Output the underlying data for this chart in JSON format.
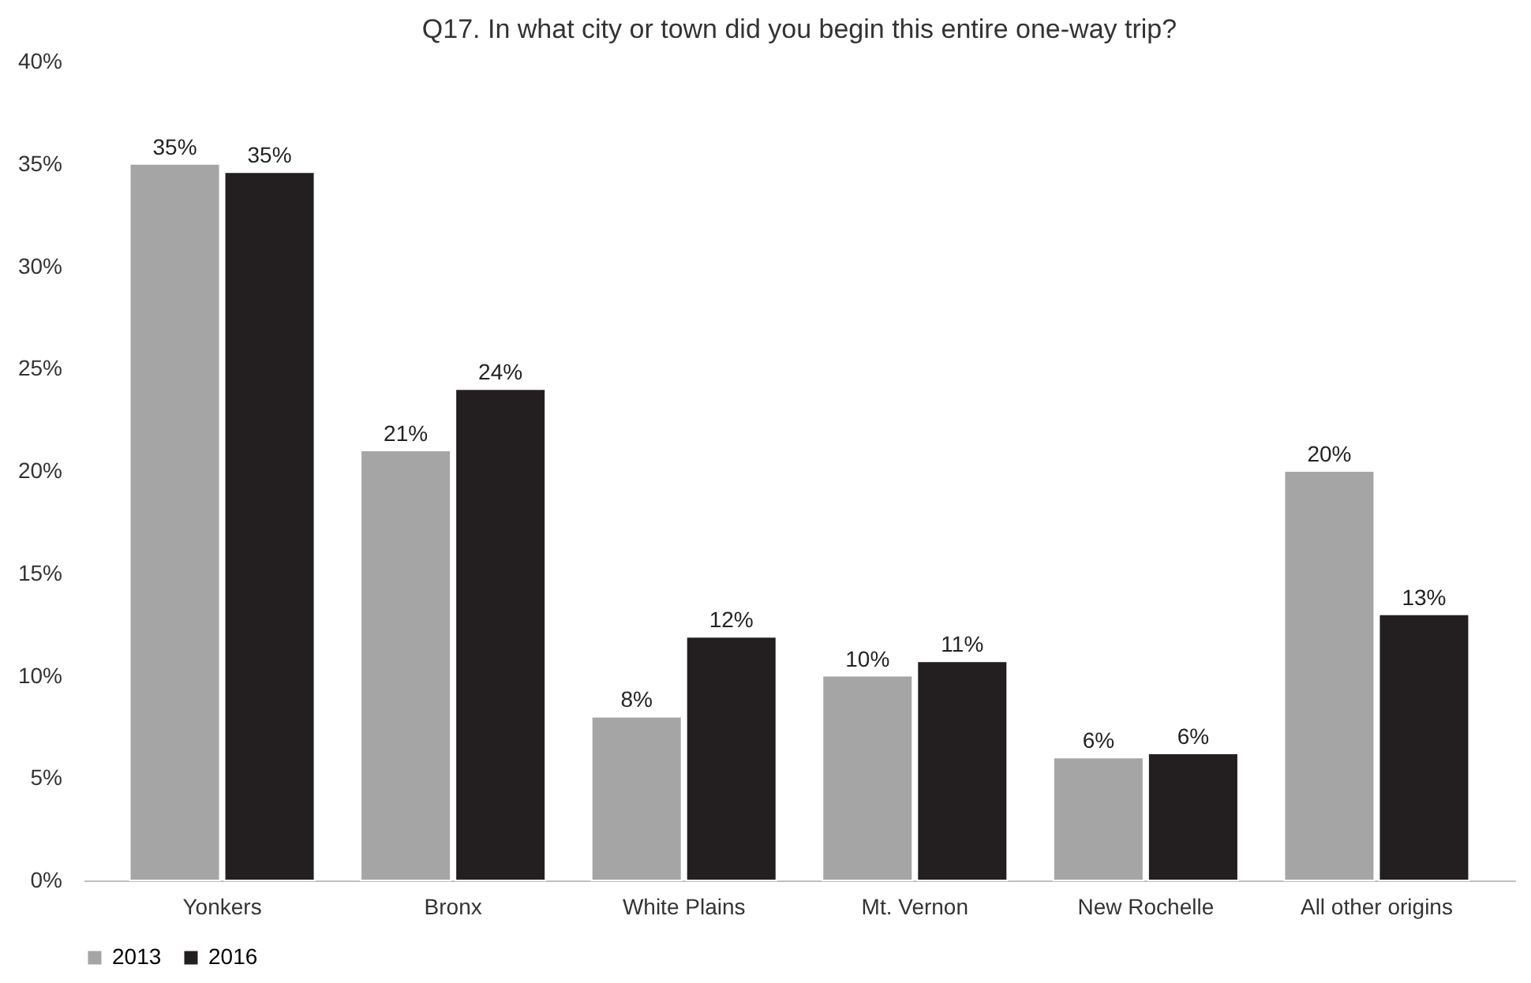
{
  "chart_data": {
    "type": "bar",
    "title": "Q17. In what city or town did you begin this entire one-way trip?",
    "categories": [
      "Yonkers",
      "Bronx",
      "White Plains",
      "Mt. Vernon",
      "New Rochelle",
      "All other origins"
    ],
    "series": [
      {
        "name": "2013",
        "color": "#a5a5a5",
        "values": [
          35.0,
          21.0,
          8.0,
          10.0,
          6.0,
          20.0
        ],
        "value_labels": [
          "35%",
          "21%",
          "8%",
          "10%",
          "6%",
          "20%"
        ]
      },
      {
        "name": "2016",
        "color": "#231f20",
        "values": [
          34.6,
          24.0,
          11.9,
          10.7,
          6.2,
          13.0
        ],
        "value_labels": [
          "35%",
          "24%",
          "12%",
          "11%",
          "6%",
          "13%"
        ]
      }
    ],
    "ylim": [
      0,
      40
    ],
    "yticks": [
      {
        "value": 0,
        "label": "0%"
      },
      {
        "value": 5,
        "label": "5%"
      },
      {
        "value": 10,
        "label": "10%"
      },
      {
        "value": 15,
        "label": "15%"
      },
      {
        "value": 20,
        "label": "20%"
      },
      {
        "value": 25,
        "label": "25%"
      },
      {
        "value": 30,
        "label": "30%"
      },
      {
        "value": 35,
        "label": "35%"
      },
      {
        "value": 40,
        "label": "40%"
      }
    ],
    "grid": false,
    "legend": "bottom"
  }
}
